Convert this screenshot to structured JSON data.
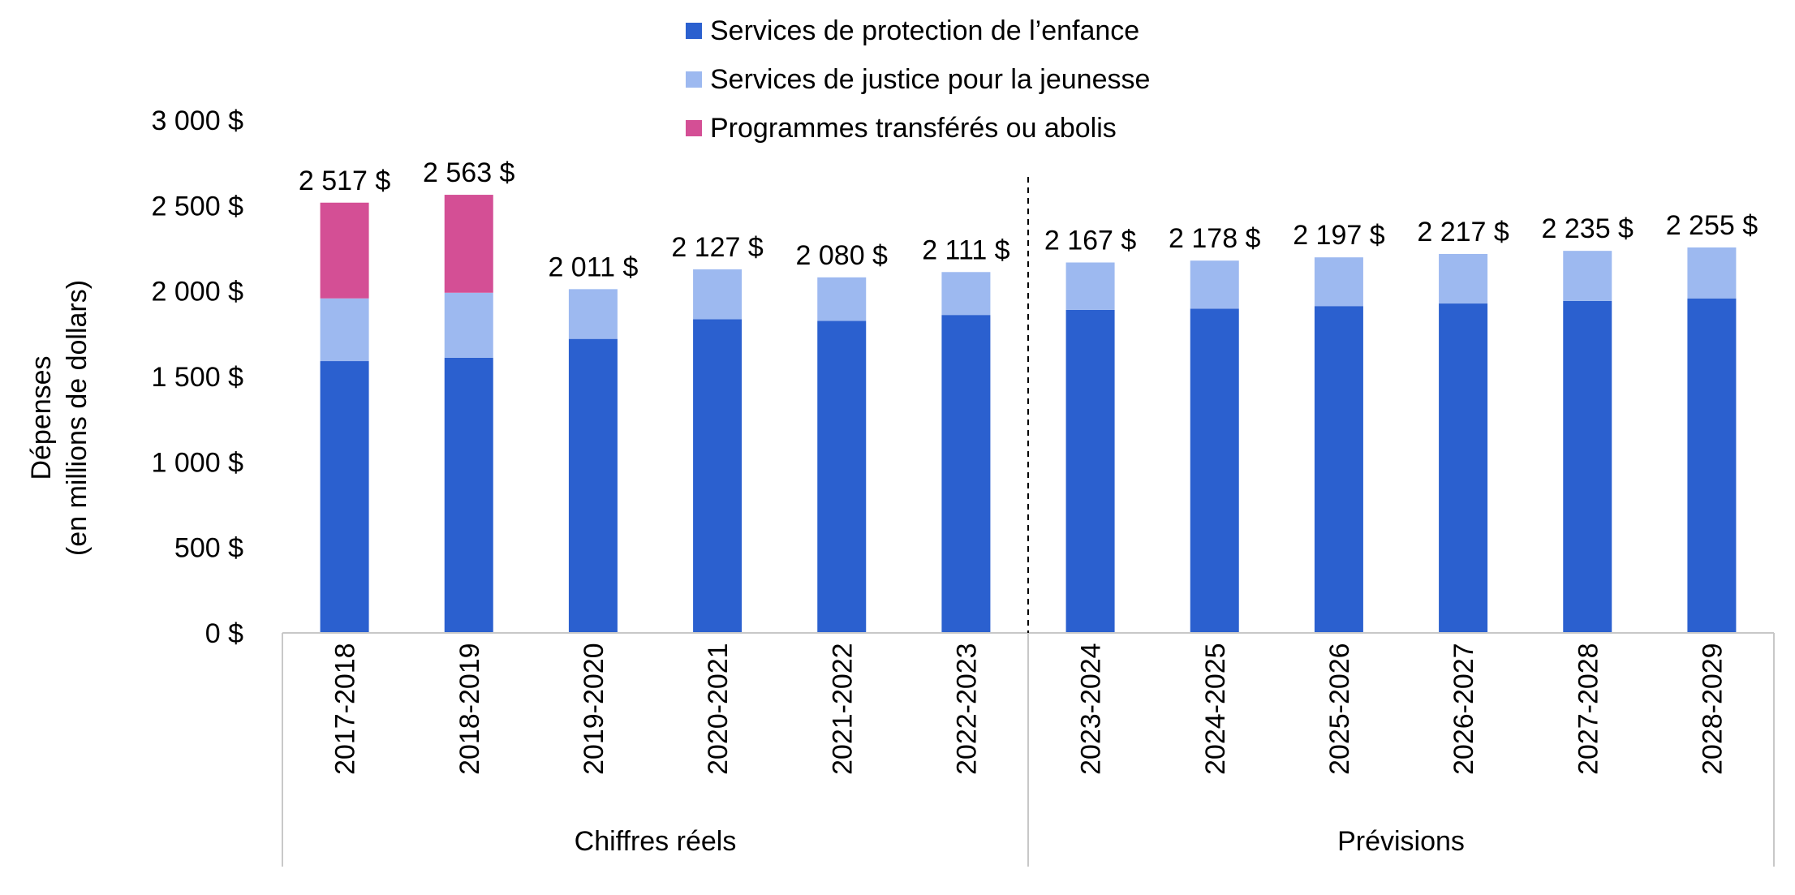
{
  "chart_data": {
    "type": "bar",
    "stacked": true,
    "categories": [
      "2017-2018",
      "2018-2019",
      "2019-2020",
      "2020-2021",
      "2021-2022",
      "2022-2023",
      "2023-2024",
      "2024-2025",
      "2025-2026",
      "2026-2027",
      "2027-2028",
      "2028-2029"
    ],
    "groups": [
      {
        "label": "Chiffres réels",
        "categories": [
          "2017-2018",
          "2018-2019",
          "2019-2020",
          "2020-2021",
          "2021-2022",
          "2022-2023"
        ]
      },
      {
        "label": "Prévisions",
        "categories": [
          "2023-2024",
          "2024-2025",
          "2025-2026",
          "2026-2027",
          "2027-2028",
          "2028-2029"
        ]
      }
    ],
    "series": [
      {
        "name": "Services de protection de l’enfance",
        "color": "#2b60cf",
        "values": [
          1590,
          1610,
          1720,
          1835,
          1825,
          1860,
          1890,
          1897,
          1912,
          1927,
          1942,
          1957
        ]
      },
      {
        "name": "Services de justice pour la jeunesse",
        "color": "#9db9f0",
        "values": [
          367,
          380,
          291,
          292,
          255,
          251,
          277,
          281,
          285,
          290,
          293,
          298
        ]
      },
      {
        "name": "Programmes transférés ou abolis",
        "color": "#d44f95",
        "values": [
          560,
          573,
          0,
          0,
          0,
          0,
          0,
          0,
          0,
          0,
          0,
          0
        ]
      }
    ],
    "totals": [
      2517,
      2563,
      2011,
      2127,
      2080,
      2111,
      2167,
      2178,
      2197,
      2217,
      2235,
      2255
    ],
    "total_labels": [
      "2 517 $",
      "2 563 $",
      "2 011 $",
      "2 127 $",
      "2 080 $",
      "2 111 $",
      "2 167 $",
      "2 178 $",
      "2 197 $",
      "2 217 $",
      "2 235 $",
      "2 255 $"
    ],
    "ylabel": [
      "Dépenses",
      "(en millions de dollars)"
    ],
    "ylim": [
      0,
      3000
    ],
    "yticks": [
      0,
      500,
      1000,
      1500,
      2000,
      2500,
      3000
    ],
    "ytick_labels": [
      "0 $",
      "500 $",
      "1 000 $",
      "1 500 $",
      "2 000 $",
      "2 500 $",
      "3 000 $"
    ],
    "grid": false,
    "legend_position": "top"
  }
}
